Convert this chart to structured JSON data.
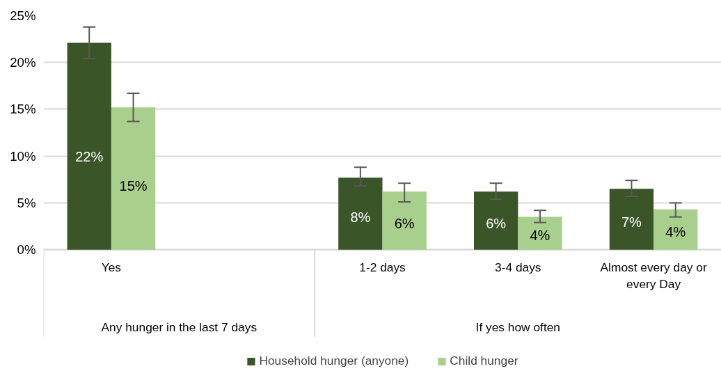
{
  "chart_data": {
    "type": "bar",
    "categories": [
      "Yes",
      null,
      "1-2 days",
      "3-4 days",
      "Almost every day or every Day"
    ],
    "annotations": [
      "Any hunger in the last 7 days",
      "If yes how often"
    ],
    "series": [
      {
        "name": "Household hunger (anyone)",
        "color": "#3a5527",
        "values": [
          22.1,
          null,
          7.7,
          6.2,
          6.5
        ],
        "errors": [
          [
            20.4,
            23.8
          ],
          null,
          [
            6.8,
            8.8
          ],
          [
            5.4,
            7.1
          ],
          [
            5.7,
            7.4
          ]
        ],
        "value_labels": [
          "22%",
          null,
          "8%",
          "6%",
          "7%"
        ]
      },
      {
        "name": "Child hunger",
        "color": "#a8cf8c",
        "values": [
          15.2,
          null,
          6.2,
          3.5,
          4.3
        ],
        "errors": [
          [
            13.7,
            16.7
          ],
          null,
          [
            5.1,
            7.1
          ],
          [
            2.9,
            4.2
          ],
          [
            3.5,
            5.0
          ]
        ],
        "value_labels": [
          "15%",
          null,
          "6%",
          "4%",
          "4%"
        ]
      }
    ],
    "ylim": [
      0,
      25
    ],
    "yticks": [
      {
        "value": 0,
        "label": "0%"
      },
      {
        "value": 5,
        "label": "5%"
      },
      {
        "value": 10,
        "label": "10%"
      },
      {
        "value": 15,
        "label": "15%"
      },
      {
        "value": 20,
        "label": "20%"
      },
      {
        "value": 25,
        "label": "25%"
      }
    ],
    "grid": "y",
    "legend": "bottom"
  }
}
